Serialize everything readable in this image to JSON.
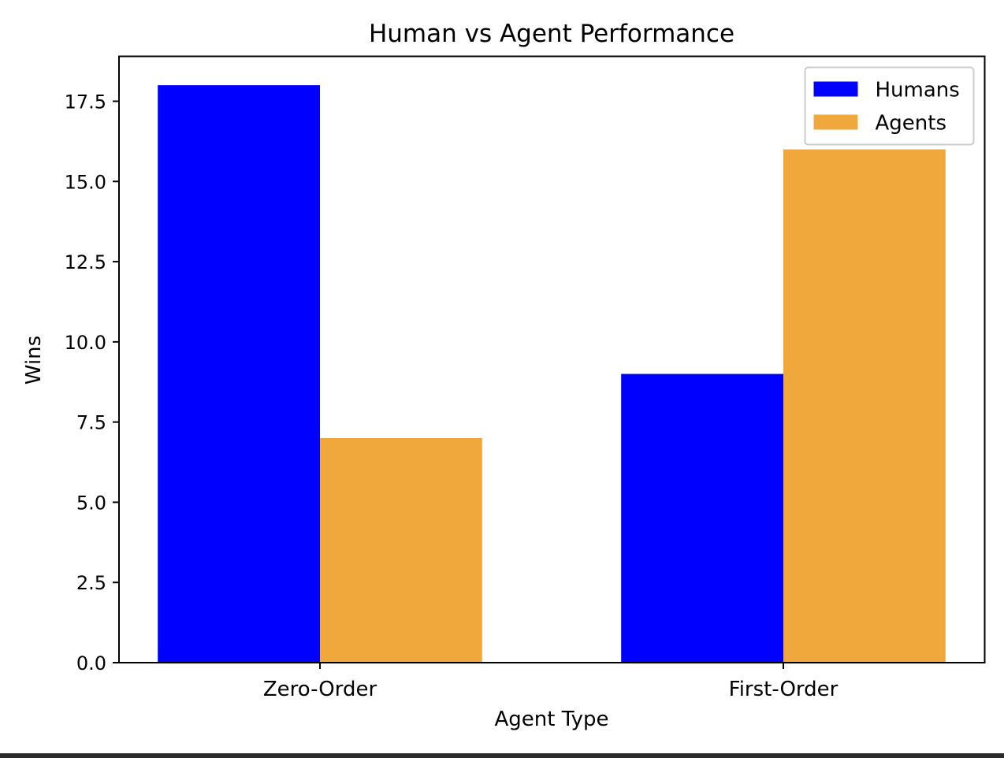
{
  "chart_data": {
    "type": "bar",
    "title": "Human vs Agent Performance",
    "xlabel": "Agent Type",
    "ylabel": "Wins",
    "categories": [
      "Zero-Order",
      "First-Order"
    ],
    "series": [
      {
        "name": "Humans",
        "values": [
          18,
          9
        ],
        "color": "#0000ff"
      },
      {
        "name": "Agents",
        "values": [
          7,
          16
        ],
        "color": "#f0a83c"
      }
    ],
    "ylim": [
      0,
      18.9
    ],
    "yticks": [
      "0.0",
      "2.5",
      "5.0",
      "7.5",
      "10.0",
      "12.5",
      "15.0",
      "17.5"
    ],
    "grid": false,
    "legend_position": "top-right"
  }
}
